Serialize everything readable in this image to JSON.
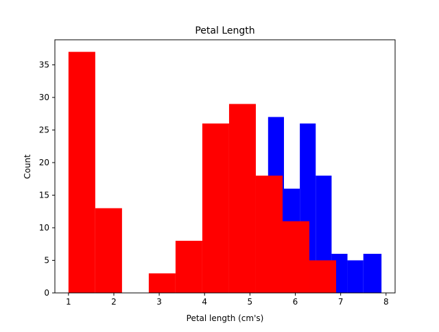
{
  "chart_data": {
    "type": "bar",
    "title": "Petal Length",
    "xlabel": "Petal length (cm's)",
    "ylabel": "Count",
    "xlim": [
      0.7,
      8.2
    ],
    "ylim": [
      0,
      38.85
    ],
    "xticks": [
      1,
      2,
      3,
      4,
      5,
      6,
      7,
      8
    ],
    "yticks": [
      0,
      5,
      10,
      15,
      20,
      25,
      30,
      35
    ],
    "grid": false,
    "legend": "none",
    "series": [
      {
        "color": "#0000ff",
        "bins": [
          {
            "x0": 5.4,
            "x1": 5.75,
            "count": 27
          },
          {
            "x0": 5.75,
            "x1": 6.1,
            "count": 16
          },
          {
            "x0": 6.1,
            "x1": 6.45,
            "count": 26
          },
          {
            "x0": 6.45,
            "x1": 6.8,
            "count": 18
          },
          {
            "x0": 6.8,
            "x1": 7.15,
            "count": 6
          },
          {
            "x0": 7.15,
            "x1": 7.5,
            "count": 5
          },
          {
            "x0": 7.5,
            "x1": 7.9,
            "count": 6
          }
        ]
      },
      {
        "color": "#ff0000",
        "bins": [
          {
            "x0": 1.0,
            "x1": 1.59,
            "count": 37
          },
          {
            "x0": 1.59,
            "x1": 2.18,
            "count": 13
          },
          {
            "x0": 2.18,
            "x1": 2.77,
            "count": 0
          },
          {
            "x0": 2.77,
            "x1": 3.36,
            "count": 3
          },
          {
            "x0": 3.36,
            "x1": 3.95,
            "count": 8
          },
          {
            "x0": 3.95,
            "x1": 4.54,
            "count": 26
          },
          {
            "x0": 4.54,
            "x1": 5.13,
            "count": 29
          },
          {
            "x0": 5.13,
            "x1": 5.72,
            "count": 18
          },
          {
            "x0": 5.72,
            "x1": 6.31,
            "count": 11
          },
          {
            "x0": 6.31,
            "x1": 6.9,
            "count": 5
          }
        ]
      }
    ]
  }
}
